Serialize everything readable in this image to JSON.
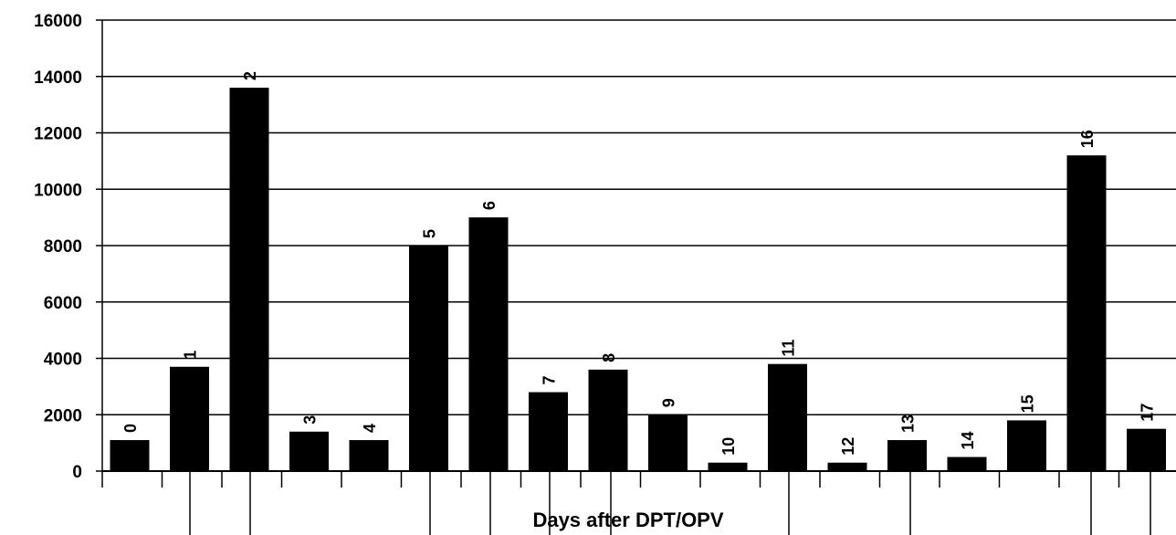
{
  "chart_data": {
    "type": "bar",
    "title": "",
    "xlabel": "Days after DPT/OPV",
    "ylabel": "",
    "ylim": [
      0,
      16000
    ],
    "yticks": [
      "0",
      "2000",
      "4000",
      "6000",
      "8000",
      "10000",
      "12000",
      "14000",
      "16000"
    ],
    "grid": true,
    "legend": "none",
    "bar_color": "#000000",
    "categories": [
      "0",
      "1",
      "2",
      "3",
      "4",
      "5",
      "6",
      "7",
      "8",
      "9",
      "10",
      "11",
      "12",
      "13",
      "14",
      "15",
      "16",
      "17"
    ],
    "values": [
      1100,
      3700,
      13600,
      1400,
      1100,
      8000,
      9000,
      2800,
      3600,
      2000,
      300,
      3800,
      300,
      1100,
      500,
      1800,
      11200,
      1500
    ]
  }
}
